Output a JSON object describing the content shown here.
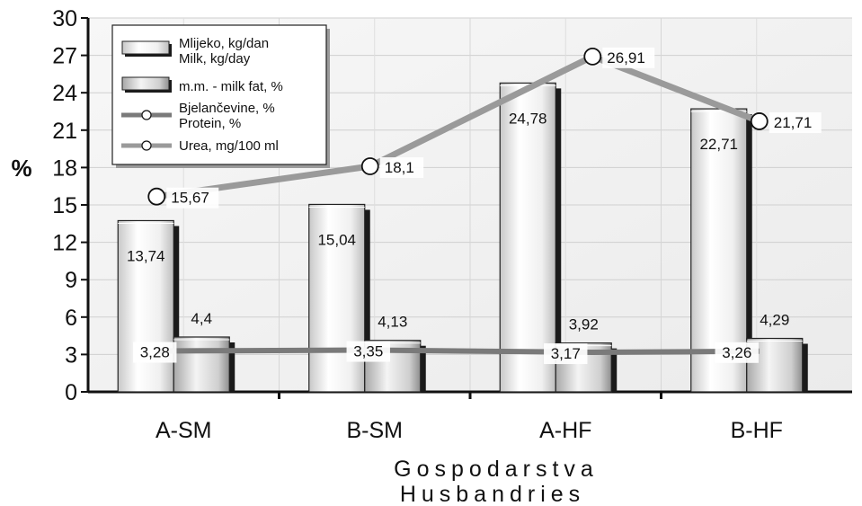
{
  "chart_data": {
    "type": "bar",
    "categories": [
      "A-SM",
      "B-SM",
      "A-HF",
      "B-HF"
    ],
    "ylabel": "%",
    "xlabel": [
      "Gospodarstva",
      "Husbandries"
    ],
    "ylim": [
      0,
      30
    ],
    "yticks": [
      0,
      3,
      6,
      9,
      12,
      15,
      18,
      21,
      24,
      27,
      30
    ],
    "grid": true,
    "legend_position": "top-left",
    "series": [
      {
        "name": [
          "Mlijeko, kg/dan",
          "Milk, kg/day"
        ],
        "kind": "bar",
        "values": [
          13.74,
          15.04,
          24.78,
          22.71
        ],
        "labels": [
          "13,74",
          "15,04",
          "24,78",
          "22,71"
        ],
        "color": "#f2f2f2"
      },
      {
        "name": [
          "m.m. - milk fat, %"
        ],
        "kind": "bar",
        "values": [
          4.4,
          4.13,
          3.92,
          4.29
        ],
        "labels": [
          "4,4",
          "4,13",
          "3,92",
          "4,29"
        ],
        "color": "#d9d9d9"
      },
      {
        "name": [
          "Bjelančevine, %",
          "Protein, %"
        ],
        "kind": "line",
        "values": [
          3.28,
          3.35,
          3.17,
          3.26
        ],
        "labels": [
          "3,28",
          "3,35",
          "3,17",
          "3,26"
        ],
        "color": "#7a7a7a"
      },
      {
        "name": [
          "Urea, mg/100 ml"
        ],
        "kind": "line",
        "values": [
          15.67,
          18.1,
          26.91,
          21.71
        ],
        "labels": [
          "15,67",
          "18,1",
          "26,91",
          "21,71"
        ],
        "color": "#9a9a9a"
      }
    ]
  }
}
